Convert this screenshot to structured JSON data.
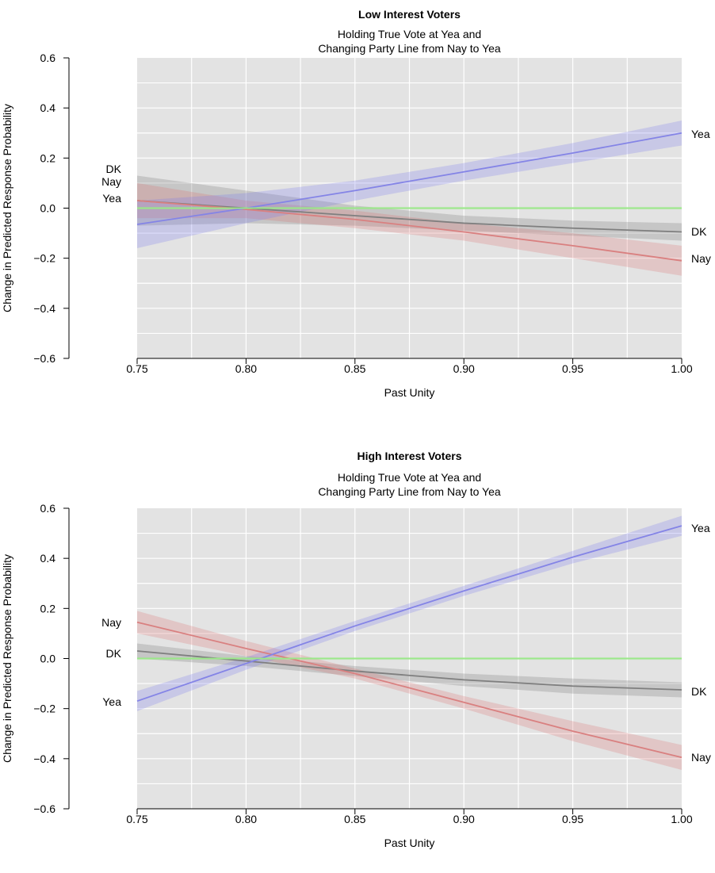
{
  "chart_data": [
    {
      "type": "line",
      "title": "Low Interest Voters",
      "subtitle": [
        "Holding True Vote at Yea and",
        "Changing Party Line from Nay to Yea"
      ],
      "xlabel": "Past Unity",
      "ylabel": "Change in Predicted Response Probability",
      "xlim": [
        0.75,
        1.0
      ],
      "ylim": [
        -0.6,
        0.6
      ],
      "xticks": [
        "0.75",
        "0.80",
        "0.85",
        "0.90",
        "0.95",
        "1.00"
      ],
      "yticks": [
        "0.6",
        "0.4",
        "0.2",
        "0.0",
        "−0.2",
        "−0.4",
        "−0.6"
      ],
      "grid": true,
      "x": [
        0.75,
        0.8,
        0.85,
        0.9,
        0.95,
        1.0
      ],
      "series": [
        {
          "name": "DK",
          "color": "#7f7f7f",
          "band": "rgba(110,110,110,0.25)",
          "values": [
            0.03,
            0.0,
            -0.03,
            -0.06,
            -0.08,
            -0.095
          ],
          "lower": [
            -0.07,
            -0.06,
            -0.07,
            -0.09,
            -0.11,
            -0.13
          ],
          "upper": [
            0.13,
            0.07,
            0.01,
            -0.03,
            -0.05,
            -0.06
          ],
          "left_label": "DK",
          "right_label": "DK"
        },
        {
          "name": "Nay",
          "color": "#d98080",
          "band": "rgba(220,110,110,0.25)",
          "values": [
            0.03,
            -0.005,
            -0.045,
            -0.095,
            -0.15,
            -0.21
          ],
          "lower": [
            -0.04,
            -0.04,
            -0.08,
            -0.13,
            -0.2,
            -0.27
          ],
          "upper": [
            0.1,
            0.03,
            -0.01,
            -0.06,
            -0.1,
            -0.15
          ],
          "left_label": "Nay",
          "right_label": "Nay"
        },
        {
          "name": "Yea",
          "color": "#8484e6",
          "band": "rgba(120,120,240,0.25)",
          "values": [
            -0.065,
            0.0,
            0.07,
            0.145,
            0.22,
            0.3
          ],
          "lower": [
            -0.16,
            -0.06,
            0.03,
            0.11,
            0.18,
            0.25
          ],
          "upper": [
            0.03,
            0.06,
            0.11,
            0.18,
            0.26,
            0.35
          ],
          "left_label": "Yea",
          "right_label": "Yea"
        },
        {
          "name": "",
          "color": "#9be88a",
          "band": "rgba(150,230,130,0.3)",
          "values": [
            0,
            0,
            0,
            0,
            0,
            0
          ],
          "lower": [
            -0.005,
            -0.005,
            -0.005,
            -0.005,
            -0.005,
            -0.005
          ],
          "upper": [
            0.005,
            0.005,
            0.005,
            0.005,
            0.005,
            0.005
          ]
        }
      ]
    },
    {
      "type": "line",
      "title": "High Interest Voters",
      "subtitle": [
        "Holding True Vote at Yea and",
        "Changing Party Line from Nay to Yea"
      ],
      "xlabel": "Past Unity",
      "ylabel": "Change in Predicted Response Probability",
      "xlim": [
        0.75,
        1.0
      ],
      "ylim": [
        -0.6,
        0.6
      ],
      "xticks": [
        "0.75",
        "0.80",
        "0.85",
        "0.90",
        "0.95",
        "1.00"
      ],
      "yticks": [
        "0.6",
        "0.4",
        "0.2",
        "0.0",
        "−0.2",
        "−0.4",
        "−0.6"
      ],
      "grid": true,
      "x": [
        0.75,
        0.8,
        0.85,
        0.9,
        0.95,
        1.0
      ],
      "series": [
        {
          "name": "DK",
          "color": "#7f7f7f",
          "band": "rgba(110,110,110,0.25)",
          "values": [
            0.03,
            -0.01,
            -0.05,
            -0.085,
            -0.11,
            -0.125
          ],
          "lower": [
            0.0,
            -0.03,
            -0.07,
            -0.11,
            -0.14,
            -0.155
          ],
          "upper": [
            0.06,
            0.01,
            -0.03,
            -0.06,
            -0.08,
            -0.095
          ],
          "left_label": "DK",
          "right_label": "DK"
        },
        {
          "name": "Nay",
          "color": "#d98080",
          "band": "rgba(220,110,110,0.25)",
          "values": [
            0.145,
            0.04,
            -0.06,
            -0.175,
            -0.29,
            -0.395
          ],
          "lower": [
            0.1,
            0.01,
            -0.08,
            -0.2,
            -0.33,
            -0.445
          ],
          "upper": [
            0.19,
            0.07,
            -0.04,
            -0.15,
            -0.25,
            -0.345
          ],
          "left_label": "Nay",
          "right_label": "Nay"
        },
        {
          "name": "Yea",
          "color": "#8484e6",
          "band": "rgba(120,120,240,0.25)",
          "values": [
            -0.17,
            -0.02,
            0.13,
            0.27,
            0.405,
            0.53
          ],
          "lower": [
            -0.21,
            -0.045,
            0.11,
            0.25,
            0.38,
            0.49
          ],
          "upper": [
            -0.13,
            0.005,
            0.15,
            0.29,
            0.43,
            0.57
          ],
          "left_label": "Yea",
          "right_label": "Yea"
        },
        {
          "name": "",
          "color": "#9be88a",
          "band": "rgba(150,230,130,0.3)",
          "values": [
            0,
            0,
            0,
            0,
            0,
            0
          ],
          "lower": [
            -0.005,
            -0.005,
            -0.005,
            -0.005,
            -0.005,
            -0.005
          ],
          "upper": [
            0.005,
            0.005,
            0.005,
            0.005,
            0.005,
            0.005
          ]
        }
      ]
    }
  ]
}
